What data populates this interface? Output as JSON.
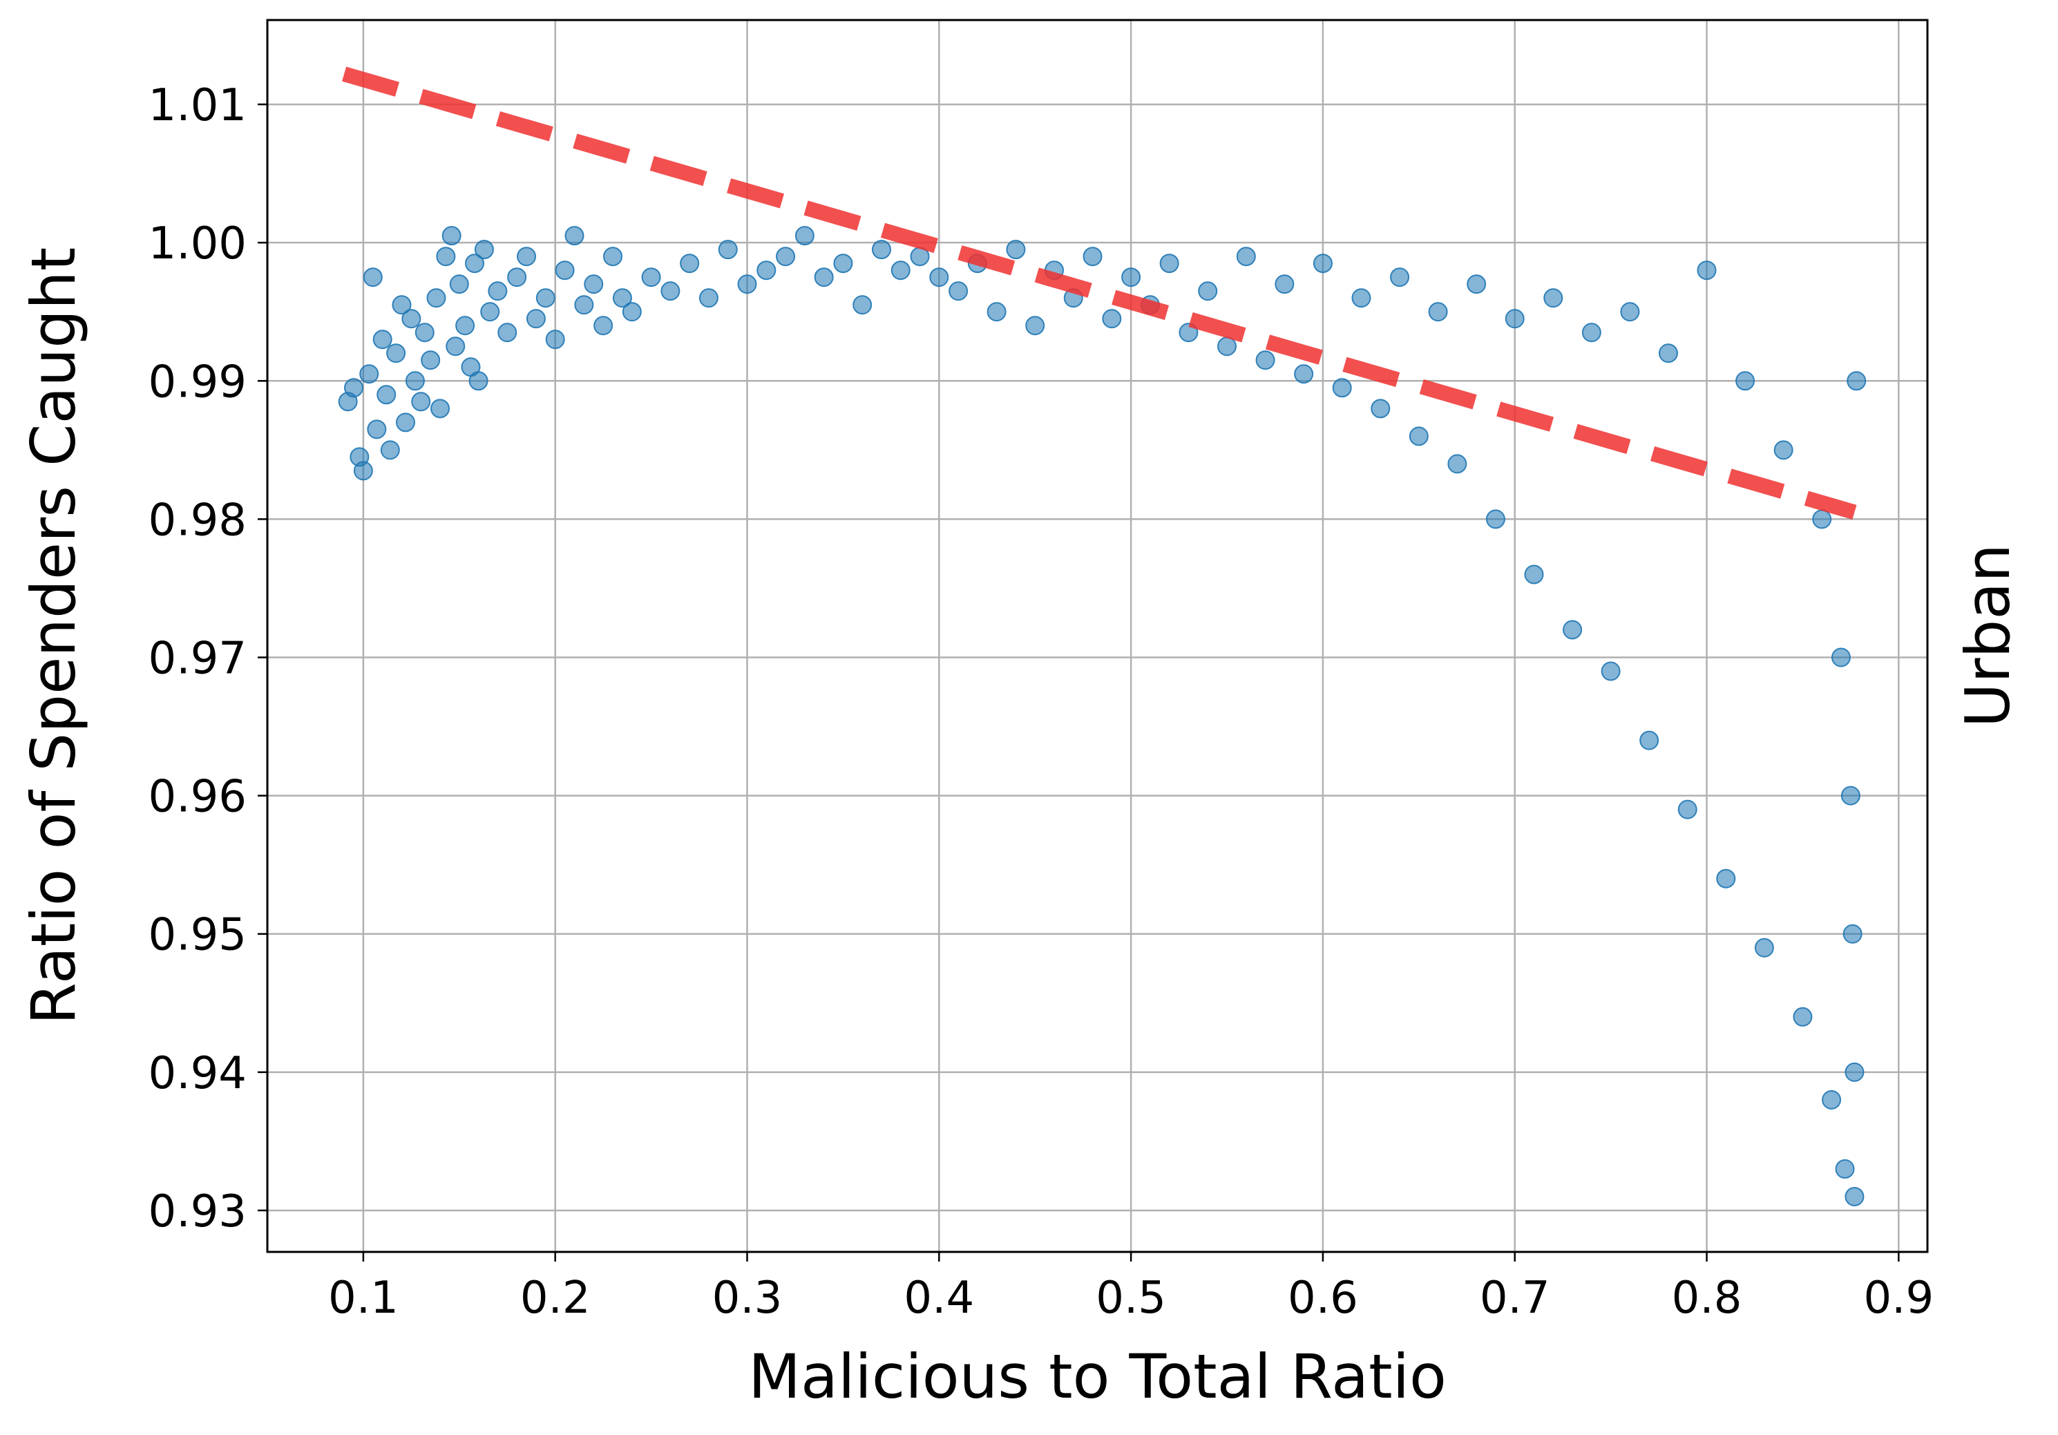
{
  "chart_data": {
    "type": "scatter",
    "xlabel": "Malicious to Total Ratio",
    "ylabel": "Ratio of Spenders Caught",
    "side_label": "Urban",
    "xlim": [
      0.05,
      0.915
    ],
    "ylim": [
      0.927,
      1.0161
    ],
    "x_ticks": [
      0.1,
      0.2,
      0.3,
      0.4,
      0.5,
      0.6,
      0.7,
      0.8,
      0.9
    ],
    "x_tick_labels": [
      "0.1",
      "0.2",
      "0.3",
      "0.4",
      "0.5",
      "0.6",
      "0.7",
      "0.8",
      "0.9"
    ],
    "y_ticks": [
      0.93,
      0.94,
      0.95,
      0.96,
      0.97,
      0.98,
      0.99,
      1.0,
      1.01
    ],
    "y_tick_labels": [
      "0.93",
      "0.94",
      "0.95",
      "0.96",
      "0.97",
      "0.98",
      "0.99",
      "1.00",
      "1.01"
    ],
    "grid": true,
    "legend": "none",
    "point_color": "#1f77b4",
    "point_alpha": 0.2,
    "trend_color": "#f03030",
    "series": [
      {
        "kind": "scatter",
        "points": [
          [
            0.092,
            0.9885
          ],
          [
            0.095,
            0.9895
          ],
          [
            0.098,
            0.9845
          ],
          [
            0.1,
            0.9835
          ],
          [
            0.103,
            0.9905
          ],
          [
            0.105,
            0.9975
          ],
          [
            0.107,
            0.9865
          ],
          [
            0.11,
            0.993
          ],
          [
            0.112,
            0.989
          ],
          [
            0.114,
            0.985
          ],
          [
            0.117,
            0.992
          ],
          [
            0.12,
            0.9955
          ],
          [
            0.122,
            0.987
          ],
          [
            0.125,
            0.9945
          ],
          [
            0.127,
            0.99
          ],
          [
            0.13,
            0.9885
          ],
          [
            0.132,
            0.9935
          ],
          [
            0.135,
            0.9915
          ],
          [
            0.138,
            0.996
          ],
          [
            0.14,
            0.988
          ],
          [
            0.143,
            0.999
          ],
          [
            0.146,
            1.0005
          ],
          [
            0.148,
            0.9925
          ],
          [
            0.15,
            0.997
          ],
          [
            0.153,
            0.994
          ],
          [
            0.156,
            0.991
          ],
          [
            0.158,
            0.9985
          ],
          [
            0.16,
            0.99
          ],
          [
            0.163,
            0.9995
          ],
          [
            0.166,
            0.995
          ],
          [
            0.17,
            0.9965
          ],
          [
            0.175,
            0.9935
          ],
          [
            0.18,
            0.9975
          ],
          [
            0.185,
            0.999
          ],
          [
            0.19,
            0.9945
          ],
          [
            0.195,
            0.996
          ],
          [
            0.2,
            0.993
          ],
          [
            0.205,
            0.998
          ],
          [
            0.21,
            1.0005
          ],
          [
            0.215,
            0.9955
          ],
          [
            0.22,
            0.997
          ],
          [
            0.225,
            0.994
          ],
          [
            0.23,
            0.999
          ],
          [
            0.235,
            0.996
          ],
          [
            0.24,
            0.995
          ],
          [
            0.25,
            0.9975
          ],
          [
            0.26,
            0.9965
          ],
          [
            0.27,
            0.9985
          ],
          [
            0.28,
            0.996
          ],
          [
            0.29,
            0.9995
          ],
          [
            0.3,
            0.997
          ],
          [
            0.31,
            0.998
          ],
          [
            0.32,
            0.999
          ],
          [
            0.33,
            1.0005
          ],
          [
            0.34,
            0.9975
          ],
          [
            0.35,
            0.9985
          ],
          [
            0.36,
            0.9955
          ],
          [
            0.37,
            0.9995
          ],
          [
            0.38,
            0.998
          ],
          [
            0.39,
            0.999
          ],
          [
            0.4,
            0.9975
          ],
          [
            0.41,
            0.9965
          ],
          [
            0.42,
            0.9985
          ],
          [
            0.43,
            0.995
          ],
          [
            0.44,
            0.9995
          ],
          [
            0.45,
            0.994
          ],
          [
            0.46,
            0.998
          ],
          [
            0.47,
            0.996
          ],
          [
            0.48,
            0.999
          ],
          [
            0.49,
            0.9945
          ],
          [
            0.5,
            0.9975
          ],
          [
            0.51,
            0.9955
          ],
          [
            0.52,
            0.9985
          ],
          [
            0.53,
            0.9935
          ],
          [
            0.54,
            0.9965
          ],
          [
            0.55,
            0.9925
          ],
          [
            0.56,
            0.999
          ],
          [
            0.57,
            0.9915
          ],
          [
            0.58,
            0.997
          ],
          [
            0.59,
            0.9905
          ],
          [
            0.6,
            0.9985
          ],
          [
            0.61,
            0.9895
          ],
          [
            0.62,
            0.996
          ],
          [
            0.63,
            0.988
          ],
          [
            0.64,
            0.9975
          ],
          [
            0.65,
            0.986
          ],
          [
            0.66,
            0.995
          ],
          [
            0.67,
            0.984
          ],
          [
            0.68,
            0.997
          ],
          [
            0.69,
            0.98
          ],
          [
            0.7,
            0.9945
          ],
          [
            0.71,
            0.976
          ],
          [
            0.72,
            0.996
          ],
          [
            0.73,
            0.972
          ],
          [
            0.74,
            0.9935
          ],
          [
            0.75,
            0.969
          ],
          [
            0.76,
            0.995
          ],
          [
            0.77,
            0.964
          ],
          [
            0.78,
            0.992
          ],
          [
            0.79,
            0.959
          ],
          [
            0.8,
            0.998
          ],
          [
            0.81,
            0.954
          ],
          [
            0.82,
            0.99
          ],
          [
            0.83,
            0.949
          ],
          [
            0.84,
            0.985
          ],
          [
            0.85,
            0.944
          ],
          [
            0.86,
            0.98
          ],
          [
            0.865,
            0.938
          ],
          [
            0.87,
            0.97
          ],
          [
            0.872,
            0.933
          ],
          [
            0.875,
            0.96
          ],
          [
            0.876,
            0.95
          ],
          [
            0.877,
            0.94
          ],
          [
            0.877,
            0.931
          ],
          [
            0.878,
            0.99
          ]
        ]
      },
      {
        "kind": "trend_line",
        "style": "dashed",
        "points": [
          [
            0.09,
            1.0122
          ],
          [
            0.877,
            0.9805
          ]
        ]
      }
    ]
  }
}
